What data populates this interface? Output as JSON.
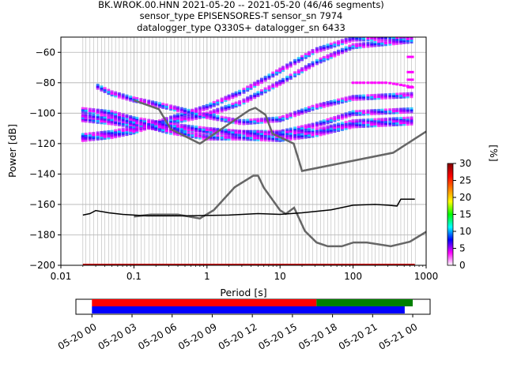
{
  "title_lines": [
    "BK.WROK.00.HNN   2021-05-20 -- 2021-05-20  (46/46 segments)",
    "sensor_type EPISENSORES-T sensor_sn 7974",
    "datalogger_type Q330S+ datalogger_sn 6433"
  ],
  "chart_data": {
    "type": "heatmap",
    "title": "BK.WROK.00.HNN   2021-05-20 -- 2021-05-20  (46/46 segments)",
    "xlabel": "Period [s]",
    "ylabel": "Power [dB]",
    "xscale": "log",
    "xlim": [
      0.01,
      1000
    ],
    "ylim": [
      -200,
      -50
    ],
    "x_ticks": [
      {
        "value": 0.01,
        "label": "0.01"
      },
      {
        "value": 0.1,
        "label": "0.1"
      },
      {
        "value": 1,
        "label": "1"
      },
      {
        "value": 10,
        "label": "10"
      },
      {
        "value": 100,
        "label": "100"
      },
      {
        "value": 1000,
        "label": "1000"
      }
    ],
    "y_ticks": [
      {
        "value": -60,
        "label": "−60"
      },
      {
        "value": -80,
        "label": "−80"
      },
      {
        "value": -100,
        "label": "−100"
      },
      {
        "value": -120,
        "label": "−120"
      },
      {
        "value": -140,
        "label": "−140"
      },
      {
        "value": -160,
        "label": "−160"
      },
      {
        "value": -180,
        "label": "−180"
      },
      {
        "value": -200,
        "label": "−200"
      }
    ],
    "grid": true,
    "colorbar": {
      "label": "[%]",
      "range": [
        0,
        30
      ],
      "ticks": [
        {
          "value": 0,
          "label": "0"
        },
        {
          "value": 5,
          "label": "5"
        },
        {
          "value": 10,
          "label": "10"
        },
        {
          "value": 15,
          "label": "15"
        },
        {
          "value": 20,
          "label": "20"
        },
        {
          "value": 25,
          "label": "25"
        },
        {
          "value": 30,
          "label": "30"
        }
      ],
      "colors": [
        "#ffffff",
        "#ff00ff",
        "#0000ff",
        "#00ffff",
        "#00ff00",
        "#ffff00",
        "#ff8000",
        "#ff0000",
        "#800000"
      ]
    },
    "noise_models": [
      {
        "role": "high",
        "points": [
          [
            0.1,
            -91.5
          ],
          [
            0.22,
            -97.4
          ],
          [
            0.32,
            -110.5
          ],
          [
            0.8,
            -120
          ],
          [
            3.8,
            -98
          ],
          [
            4.6,
            -96.5
          ],
          [
            6.3,
            -101
          ],
          [
            7.9,
            -113.5
          ],
          [
            15.4,
            -120
          ],
          [
            20,
            -138
          ],
          [
            354.8,
            -126
          ],
          [
            1000,
            -112
          ]
        ]
      },
      {
        "role": "low",
        "points": [
          [
            0.1,
            -168
          ],
          [
            0.17,
            -166.7
          ],
          [
            0.4,
            -166.7
          ],
          [
            0.8,
            -169.2
          ],
          [
            1.24,
            -163.7
          ],
          [
            2.4,
            -148.6
          ],
          [
            4.3,
            -141.1
          ],
          [
            5,
            -141.1
          ],
          [
            6,
            -149
          ],
          [
            10,
            -163.8
          ],
          [
            12,
            -166.2
          ],
          [
            15.6,
            -162.1
          ],
          [
            21.9,
            -177.5
          ],
          [
            31.6,
            -185
          ],
          [
            45,
            -187.5
          ],
          [
            70,
            -187.5
          ],
          [
            101,
            -185
          ],
          [
            154,
            -185
          ],
          [
            328,
            -187.5
          ],
          [
            600,
            -184.5
          ],
          [
            1000,
            -178
          ]
        ]
      }
    ],
    "mean_psd": [
      [
        0.02,
        -167
      ],
      [
        0.025,
        -166
      ],
      [
        0.03,
        -164
      ],
      [
        0.045,
        -165.5
      ],
      [
        0.07,
        -166.5
      ],
      [
        0.15,
        -167.5
      ],
      [
        0.5,
        -167.5
      ],
      [
        2,
        -167
      ],
      [
        5,
        -166
      ],
      [
        10,
        -166.5
      ],
      [
        20,
        -165.5
      ],
      [
        50,
        -163.5
      ],
      [
        100,
        -160.5
      ],
      [
        200,
        -160
      ],
      [
        300,
        -160.5
      ],
      [
        400,
        -161
      ],
      [
        450,
        -156.5
      ],
      [
        700,
        -156.5
      ]
    ],
    "psd_bands": [
      [
        [
          0.02,
          -117
        ],
        [
          0.05,
          -115
        ],
        [
          0.1,
          -112
        ],
        [
          0.3,
          -104
        ],
        [
          1,
          -96
        ],
        [
          3,
          -86
        ],
        [
          10,
          -72
        ],
        [
          30,
          -59
        ],
        [
          100,
          -51
        ],
        [
          700,
          -50
        ]
      ],
      [
        [
          0.02,
          -115
        ],
        [
          0.05,
          -113
        ],
        [
          0.1,
          -110
        ],
        [
          0.3,
          -106
        ],
        [
          1,
          -101
        ],
        [
          3,
          -93
        ],
        [
          10,
          -80
        ],
        [
          30,
          -67
        ],
        [
          100,
          -56
        ],
        [
          700,
          -52
        ]
      ],
      [
        [
          0.03,
          -82
        ],
        [
          0.05,
          -87
        ],
        [
          0.1,
          -91
        ],
        [
          0.3,
          -96
        ],
        [
          1,
          -102
        ],
        [
          3,
          -106
        ],
        [
          10,
          -104
        ],
        [
          30,
          -96
        ],
        [
          100,
          -90
        ],
        [
          700,
          -88
        ]
      ],
      [
        [
          0.02,
          -104
        ],
        [
          0.05,
          -106
        ],
        [
          0.1,
          -108
        ],
        [
          0.3,
          -110
        ],
        [
          1,
          -112
        ],
        [
          3,
          -113
        ],
        [
          10,
          -113
        ],
        [
          30,
          -108
        ],
        [
          100,
          -100
        ],
        [
          700,
          -98
        ]
      ],
      [
        [
          0.02,
          -98
        ],
        [
          0.05,
          -100
        ],
        [
          0.1,
          -104
        ],
        [
          0.3,
          -108
        ],
        [
          1,
          -111
        ],
        [
          3,
          -113
        ],
        [
          10,
          -114
        ],
        [
          30,
          -112
        ],
        [
          100,
          -106
        ],
        [
          700,
          -104
        ]
      ],
      [
        [
          0.02,
          -102
        ],
        [
          0.05,
          -103
        ],
        [
          0.1,
          -106
        ],
        [
          0.3,
          -112
        ],
        [
          1,
          -116
        ],
        [
          3,
          -116
        ],
        [
          10,
          -117
        ],
        [
          30,
          -114
        ],
        [
          100,
          -108
        ],
        [
          700,
          -106
        ]
      ]
    ],
    "psd_top_band": [
      [
        100,
        -80
      ],
      [
        300,
        -80
      ],
      [
        700,
        -83
      ]
    ],
    "psd_bottom_band": [
      [
        0.02,
        -200
      ],
      [
        700,
        -200
      ]
    ],
    "right_spikes": [
      [
        600,
        -63
      ],
      [
        600,
        -73
      ],
      [
        600,
        -78
      ],
      [
        600,
        -83
      ]
    ],
    "segment_periods": [
      0.02,
      0.022,
      0.025,
      0.028,
      0.032,
      0.036,
      0.04,
      0.045,
      0.05,
      0.056,
      0.063,
      0.071,
      0.08,
      0.09,
      0.1,
      0.11,
      0.125,
      0.14,
      0.16,
      0.18,
      0.2,
      0.225,
      0.25,
      0.28,
      0.32,
      0.36,
      0.4,
      0.45,
      0.5,
      0.56,
      0.63,
      0.71,
      0.8,
      0.9,
      1.0,
      1.12,
      1.25,
      1.4,
      1.6,
      1.8,
      2.0,
      2.25,
      2.5,
      2.8,
      3.2,
      3.6,
      4.0,
      4.5,
      5.0,
      5.6,
      6.3,
      7.1,
      8.0,
      9.0,
      10,
      11,
      12.5,
      14,
      16,
      18,
      20,
      22.5,
      25,
      28,
      32,
      36,
      40,
      45,
      50,
      56,
      63,
      71,
      80,
      90,
      100,
      112,
      125,
      140,
      160,
      180,
      200,
      225,
      250,
      280,
      320,
      360,
      400,
      450,
      500,
      560,
      630,
      710
    ],
    "timeline": {
      "tick_labels": [
        "05-20 00",
        "05-20 03",
        "05-20 06",
        "05-20 09",
        "05-20 12",
        "05-20 15",
        "05-20 18",
        "05-20 21",
        "05-21 00"
      ],
      "tick_hours": [
        0,
        3,
        6,
        9,
        12,
        15,
        18,
        21,
        24
      ],
      "range_hours": [
        -1.2,
        25.3
      ],
      "bars": [
        {
          "color": "#ff0000",
          "start_hour": 0,
          "end_hour": 16.8
        },
        {
          "color": "#008000",
          "start_hour": 16.8,
          "end_hour": 24
        },
        {
          "color": "#0000ff",
          "start_hour": 0,
          "end_hour": 23.4
        }
      ]
    }
  }
}
